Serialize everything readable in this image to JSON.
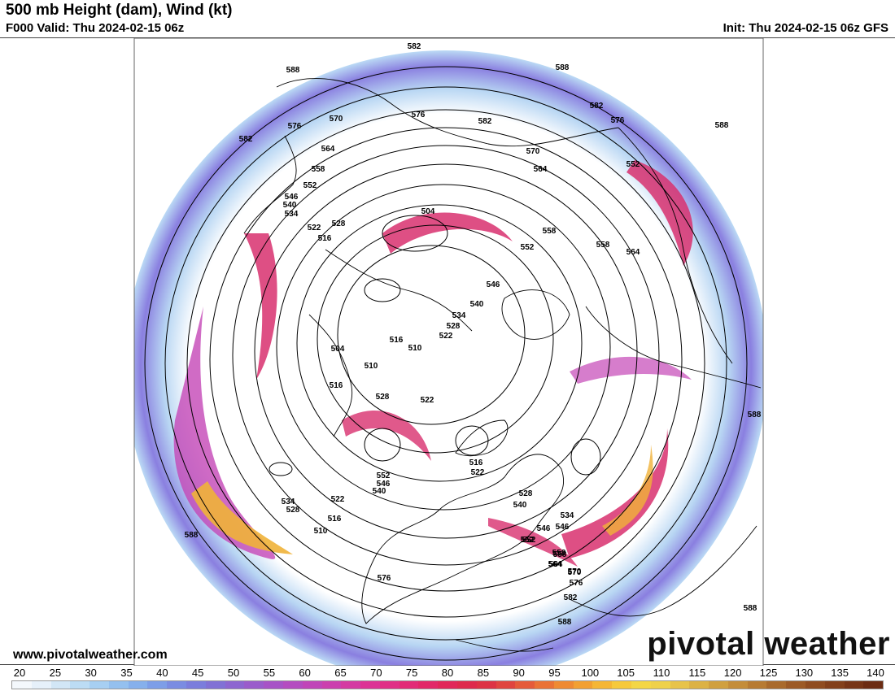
{
  "header": {
    "title": "500 mb Height (dam), Wind (kt)",
    "valid": "F000 Valid: Thu 2024-02-15 06z",
    "init": "Init: Thu 2024-02-15 06z GFS"
  },
  "footer": {
    "site_url": "www.pivotalweather.com",
    "brand": "pivotal weather"
  },
  "colorbar": {
    "labels": [
      "20",
      "25",
      "30",
      "35",
      "40",
      "45",
      "50",
      "55",
      "60",
      "65",
      "70",
      "75",
      "80",
      "85",
      "90",
      "95",
      "100",
      "105",
      "110",
      "115",
      "120",
      "125",
      "130",
      "135",
      "140"
    ],
    "colors": [
      "#f4f8fc",
      "#e6f0fa",
      "#d2e6f6",
      "#bcdcf4",
      "#a7cff2",
      "#94c0ef",
      "#86b0ec",
      "#7d9ee8",
      "#7a8ce2",
      "#7b7ddc",
      "#8171d5",
      "#8d66d0",
      "#9a5ccb",
      "#a753c6",
      "#b44cc0",
      "#c045b8",
      "#cb3fae",
      "#d43aa2",
      "#dc3495",
      "#e02f86",
      "#e22b77",
      "#e22868",
      "#e12759",
      "#de2a4c",
      "#dd3344",
      "#e0453f",
      "#e55b3a",
      "#ea7236",
      "#ef8a33",
      "#f2a032",
      "#f5b635",
      "#f6c93c",
      "#f4d646",
      "#efd14a",
      "#e7c34a",
      "#dcb246",
      "#d0a040",
      "#c48d3a",
      "#b77b33",
      "#a96a2c",
      "#9c5a26",
      "#8f4c20",
      "#83401b",
      "#773517",
      "#6c2c13"
    ]
  },
  "map": {
    "contour_labels": [
      "582",
      "588",
      "588",
      "582",
      "576",
      "570",
      "576",
      "582",
      "588",
      "576",
      "582",
      "564",
      "570",
      "558",
      "564",
      "552",
      "546",
      "540",
      "534",
      "528",
      "522",
      "516",
      "504",
      "552",
      "558",
      "558",
      "564",
      "552",
      "546",
      "540",
      "534",
      "528",
      "522",
      "516",
      "510",
      "504",
      "510",
      "516",
      "528",
      "522",
      "552",
      "546",
      "540",
      "534",
      "528",
      "522",
      "516",
      "510",
      "516",
      "522",
      "528",
      "540",
      "546",
      "552",
      "558",
      "564",
      "570",
      "576",
      "582",
      "588",
      "534",
      "546",
      "552",
      "558",
      "564",
      "570",
      "576",
      "588",
      "588",
      "588"
    ],
    "colors": {
      "land_outline": "#000000",
      "height_contour": "#000000"
    }
  }
}
